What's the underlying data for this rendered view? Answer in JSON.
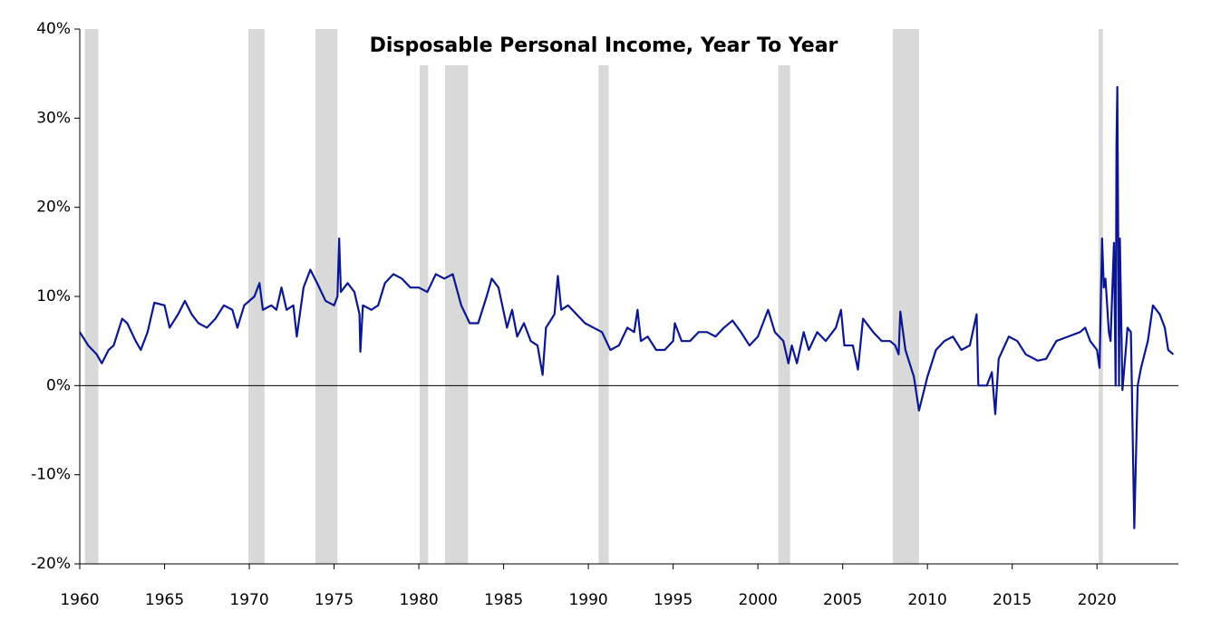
{
  "chart_data": {
    "type": "line",
    "title": "Disposable Personal Income, Year To Year",
    "color": "#0b1790",
    "shade_color": "#d9d9d9",
    "x": [
      1960,
      1960.5,
      1961,
      1961.3,
      1961.7,
      1962,
      1962.5,
      1962.8,
      1963.3,
      1963.6,
      1964,
      1964.4,
      1965,
      1965.3,
      1965.8,
      1966.2,
      1966.6,
      1967,
      1967.5,
      1968,
      1968.5,
      1969,
      1969.3,
      1969.7,
      1970.3,
      1970.6,
      1970.8,
      1971.3,
      1971.6,
      1971.9,
      1972.2,
      1972.6,
      1972.8,
      1973.2,
      1973.6,
      1974,
      1974.5,
      1975,
      1975.2,
      1975.3,
      1975.4,
      1975.8,
      1976.2,
      1976.5,
      1976.55,
      1976.7,
      1977.2,
      1977.6,
      1978,
      1978.5,
      1979,
      1979.5,
      1980,
      1980.5,
      1981,
      1981.5,
      1982,
      1982.5,
      1983,
      1983.5,
      1984,
      1984.3,
      1984.7,
      1985.2,
      1985.5,
      1985.8,
      1986.2,
      1986.6,
      1987,
      1987.3,
      1987.5,
      1988,
      1988.2,
      1988.4,
      1988.8,
      1989.3,
      1989.8,
      1990.3,
      1990.8,
      1991.3,
      1991.8,
      1992.3,
      1992.7,
      1992.9,
      1993.1,
      1993.5,
      1994,
      1994.5,
      1995,
      1995.1,
      1995.5,
      1996,
      1996.5,
      1997,
      1997.5,
      1998,
      1998.5,
      1999,
      1999.5,
      2000,
      2000.6,
      2001,
      2001.5,
      2001.8,
      2002,
      2002.3,
      2002.7,
      2003,
      2003.5,
      2004,
      2004.6,
      2004.9,
      2005.1,
      2005.6,
      2005.9,
      2006.2,
      2006.8,
      2007.3,
      2007.8,
      2008.1,
      2008.3,
      2008.4,
      2008.7,
      2009.2,
      2009.5,
      2010,
      2010.5,
      2011,
      2011.5,
      2012,
      2012.5,
      2012.9,
      2013,
      2013.5,
      2013.8,
      2014,
      2014.2,
      2014.8,
      2015.3,
      2015.8,
      2016.5,
      2017,
      2017.6,
      2018.3,
      2019,
      2019.3,
      2019.6,
      2020,
      2020.15,
      2020.3,
      2020.4,
      2020.5,
      2020.7,
      2020.8,
      2021,
      2021.1,
      2021.15,
      2021.2,
      2021.3,
      2021.35,
      2021.5,
      2021.7,
      2021.8,
      2022,
      2022.1,
      2022.2,
      2022.3,
      2022.4,
      2022.6,
      2023,
      2023.3,
      2023.7,
      2024,
      2024.2,
      2024.5
    ],
    "values": [
      6,
      4.5,
      3.5,
      2.5,
      4,
      4.5,
      7.5,
      7,
      5,
      4,
      6,
      9.3,
      9,
      6.5,
      8,
      9.5,
      8,
      7,
      6.5,
      7.5,
      9,
      8.5,
      6.5,
      9,
      10,
      11.5,
      8.5,
      9,
      8.5,
      11,
      8.5,
      9,
      5.5,
      11,
      13,
      11.5,
      9.5,
      9,
      10,
      16.5,
      10.5,
      11.5,
      10.5,
      8,
      3.8,
      9,
      8.5,
      9,
      11.5,
      12.5,
      12,
      11,
      11,
      10.5,
      12.5,
      12,
      12.5,
      9,
      7,
      7,
      10,
      12,
      11,
      6.5,
      8.5,
      5.5,
      7,
      5,
      4.5,
      1.2,
      6.5,
      8,
      12.3,
      8.5,
      9,
      8,
      7,
      6.5,
      6,
      4,
      4.5,
      6.5,
      6,
      8.5,
      5,
      5.5,
      4,
      4,
      5,
      7,
      5,
      5,
      6,
      6,
      5.5,
      6.5,
      7.3,
      6,
      4.5,
      5.5,
      8.5,
      6,
      5,
      2.5,
      4.5,
      2.5,
      6,
      4,
      6,
      5,
      6.5,
      8.5,
      4.5,
      4.5,
      1.8,
      7.5,
      6,
      5,
      5,
      4.5,
      3.5,
      8.3,
      4,
      1,
      -2.8,
      1,
      4,
      5,
      5.5,
      4,
      4.5,
      8,
      0,
      0,
      1.5,
      -3.2,
      3,
      5.5,
      5,
      3.5,
      2.8,
      3,
      5,
      5.5,
      6,
      6.5,
      5,
      4,
      2,
      16.5,
      11,
      12,
      6,
      5,
      16,
      0,
      27,
      33.5,
      0,
      16.5,
      -0.5,
      4,
      6.5,
      6,
      -5,
      -16,
      -8,
      0,
      2,
      5,
      9,
      8,
      6.5,
      4,
      3.5
    ],
    "recessions": [
      [
        1960.3,
        1961.1
      ],
      [
        1969.95,
        1970.9
      ],
      [
        1973.9,
        1975.2
      ],
      [
        1980.05,
        1980.55
      ],
      [
        1981.55,
        1982.9
      ],
      [
        1990.6,
        1991.2
      ],
      [
        2001.2,
        2001.9
      ],
      [
        2007.95,
        2009.5
      ],
      [
        2020.1,
        2020.35
      ]
    ],
    "xlim": [
      1960,
      2024.8
    ],
    "xticks": [
      1960,
      1965,
      1970,
      1975,
      1980,
      1985,
      1990,
      1995,
      2000,
      2005,
      2010,
      2015,
      2020
    ],
    "ylim": [
      -20,
      40
    ],
    "yticks": [
      {
        "value": -20,
        "label": "-20%"
      },
      {
        "value": -10,
        "label": "-10%"
      },
      {
        "value": 0,
        "label": "0%"
      },
      {
        "value": 10,
        "label": "10%"
      },
      {
        "value": 20,
        "label": "20%"
      },
      {
        "value": 30,
        "label": "30%"
      },
      {
        "value": 40,
        "label": "40%"
      }
    ]
  }
}
